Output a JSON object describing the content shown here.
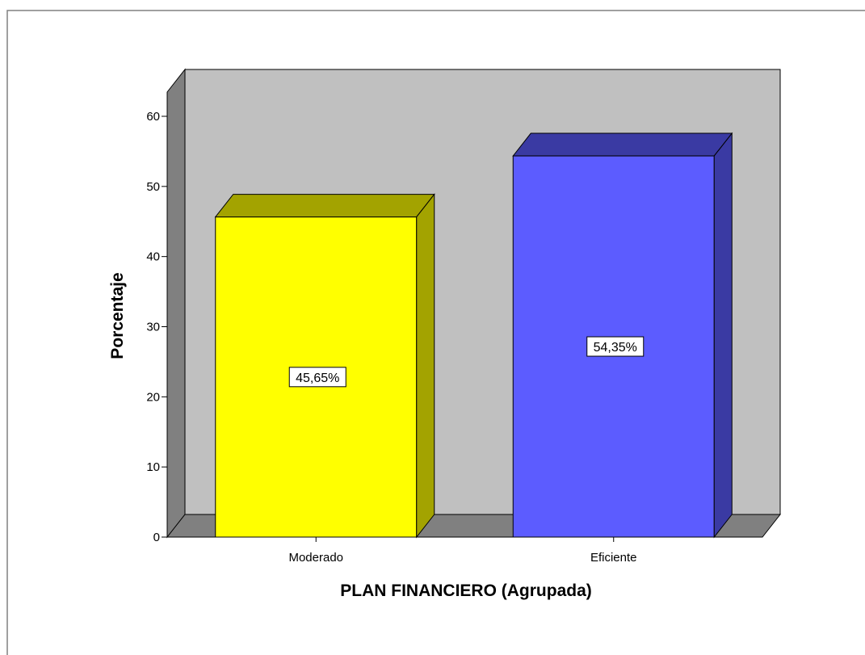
{
  "chart_data": {
    "type": "bar",
    "categories": [
      "Moderado",
      "Eficiente"
    ],
    "values": [
      45.65,
      54.35
    ],
    "data_labels": [
      "45,65%",
      "54,35%"
    ],
    "title": "",
    "xlabel": "PLAN FINANCIERO (Agrupada)",
    "ylabel": "Porcentaje",
    "ylim": [
      0,
      60
    ],
    "yticks": [
      0,
      10,
      20,
      30,
      40,
      50,
      60
    ],
    "grid": false,
    "legend": "none",
    "style": "3d",
    "colors": {
      "bars_front": [
        "#ffff00",
        "#5c5cff"
      ],
      "bars_top": [
        "#a3a300",
        "#3a3aa3"
      ],
      "bars_side": [
        "#a3a300",
        "#3a3aa3"
      ],
      "back_wall": "#c0c0c0",
      "side_wall": "#808080",
      "floor": "#808080",
      "outline": "#000000",
      "page_background": "#ffffff",
      "frame_border": "#808080"
    }
  }
}
